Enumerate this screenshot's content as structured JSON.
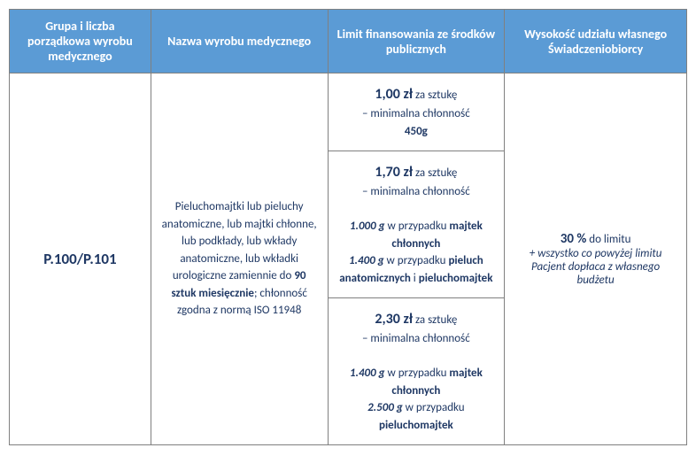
{
  "headers": {
    "col1": "Grupa i liczba porządkowa wyrobu medycznego",
    "col2": "Nazwa wyrobu medycznego",
    "col3": "Limit finansowania ze środków publicznych",
    "col4": "Wysokość udziału własnego Świadczeniobiorcy"
  },
  "code": "P.100/P.101",
  "description_pre": "Pieluchomajtki lub pieluchy anatomiczne, lub majtki chłonne, lub podkłady, lub wkłady anatomiczne, lub wkładki urologiczne zamiennie do ",
  "description_bold": "90 sztuk miesięcznie",
  "description_post": "; chłonność zgodna z normą ISO 11948",
  "tiers": [
    {
      "price": "1,00 zł",
      "per": " za sztukę",
      "line": "– minimalna chłonność",
      "bold": "450g"
    },
    {
      "price": "1,70 zł",
      "per": " za sztukę",
      "line": "– minimalna chłonność",
      "d1_val": "1.000 g",
      "d1_txt": " w przypadku ",
      "d1_bold": "majtek chłonnych",
      "d2_val": "1.400 g",
      "d2_txt": " w przypadku ",
      "d2_bold1": "pieluch anatomicznych",
      "d2_and": " i ",
      "d2_bold2": "pieluchomajtek"
    },
    {
      "price": "2,30 zł",
      "per": " za sztukę",
      "line": "– minimalna chłonność",
      "d1_val": "1.400 g",
      "d1_txt": " w przypadku ",
      "d1_bold": "majtek chłonnych",
      "d2_val": "2.500 g",
      "d2_txt": " w przypadku ",
      "d2_bold": "pieluchomajtek"
    }
  ],
  "copay": {
    "pct": "30 %",
    "pct_txt": " do limitu",
    "note": "+ wszystko co powyżej limitu Pacjent dopłaca z własnego budżetu"
  },
  "style": {
    "header_bg": "#5b9bd5",
    "header_color": "#ffffff",
    "text_color": "#1f3864",
    "border_color": "#808080"
  }
}
